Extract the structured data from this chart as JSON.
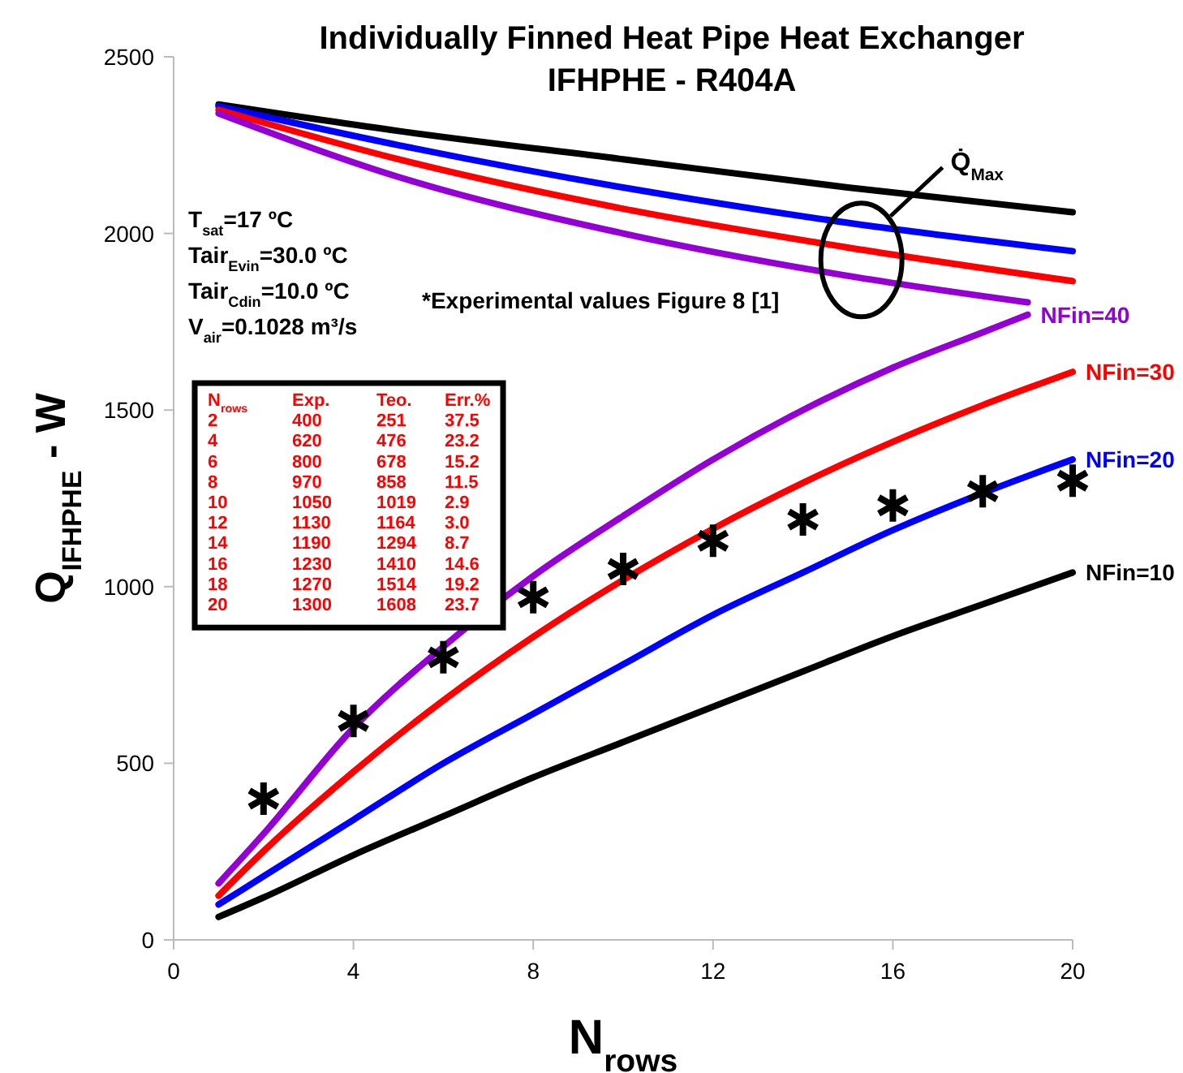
{
  "chart_data": {
    "type": "line",
    "title": "Individually Finned Heat Pipe Heat Exchanger",
    "subtitle": "IFHPHE - R404A",
    "xlabel": "N$_{rows}$",
    "ylabel": "Q$_{IFHPHE}$ - W",
    "xlim": [
      0,
      20
    ],
    "xticks": [
      0,
      4,
      8,
      12,
      16,
      20
    ],
    "ylim": [
      0,
      2500
    ],
    "yticks": [
      0,
      500,
      1000,
      1500,
      2000,
      2500
    ],
    "grid": false,
    "legend": false,
    "line_style": "solid",
    "series": [
      {
        "name": "NFin=40",
        "color": "#9400d3",
        "x": [
          1,
          2,
          4,
          6,
          8,
          10,
          12,
          14,
          16,
          18,
          19
        ],
        "values": [
          160,
          300,
          600,
          830,
          1030,
          1200,
          1360,
          1500,
          1620,
          1720,
          1770
        ]
      },
      {
        "name": "NFin=30",
        "color": "#ff0000",
        "x": [
          1,
          2,
          4,
          6,
          8,
          10,
          12,
          14,
          16,
          18,
          20
        ],
        "values": [
          125,
          251,
          476,
          678,
          858,
          1019,
          1164,
          1294,
          1410,
          1514,
          1608
        ]
      },
      {
        "name": "NFin=20",
        "color": "#0000ff",
        "x": [
          1,
          2,
          4,
          6,
          8,
          10,
          12,
          14,
          16,
          18,
          20
        ],
        "values": [
          100,
          180,
          340,
          500,
          640,
          780,
          920,
          1040,
          1160,
          1265,
          1360
        ]
      },
      {
        "name": "NFin=10",
        "color": "#000000",
        "x": [
          1,
          2,
          4,
          6,
          8,
          10,
          12,
          14,
          16,
          18,
          20
        ],
        "values": [
          65,
          120,
          240,
          350,
          460,
          560,
          660,
          760,
          860,
          950,
          1040
        ]
      },
      {
        "color": "#000000",
        "x": [
          1,
          5,
          10,
          15,
          20
        ],
        "values": [
          2365,
          2290,
          2210,
          2130,
          2060
        ]
      },
      {
        "color": "#0000ff",
        "x": [
          1,
          5,
          10,
          15,
          20
        ],
        "values": [
          2360,
          2250,
          2130,
          2030,
          1950
        ]
      },
      {
        "color": "#ff0000",
        "x": [
          1,
          5,
          10,
          15,
          20
        ],
        "values": [
          2350,
          2210,
          2070,
          1960,
          1865
        ]
      },
      {
        "color": "#9400d3",
        "x": [
          1,
          5,
          10,
          15,
          19
        ],
        "values": [
          2340,
          2160,
          2000,
          1880,
          1805
        ]
      },
      {
        "type": "scatter",
        "marker": "cross",
        "color": "#000000",
        "x": [
          2,
          4,
          6,
          8,
          10,
          12,
          14,
          16,
          18,
          20
        ],
        "values": [
          400,
          620,
          800,
          970,
          1050,
          1130,
          1190,
          1230,
          1270,
          1300
        ]
      }
    ],
    "annotations": [
      "T$_{sat}$=17 ºC",
      "Tair$_{Evin}$=30.0 ºC",
      "Tair$_{Cdin}$=10.0 ºC",
      "V$_{air}$=0.1028 m³/s",
      "*Experimental values Figure 8 [1]",
      "Q̇$_{Max}$",
      "N$_{rows}$ Exp. Teo. Err.%",
      "2 400 251 37.5",
      "4 620 476 23.2",
      "6 800 678 15.2",
      "8 970 858 11.5",
      "10 1050 1019 2.9",
      "12 1130 1164 3.0",
      "14 1190 1294 8.7",
      "16 1230 1410 14.6",
      "18 1270 1514 19.2",
      "20 1300 1608 23.7"
    ]
  }
}
